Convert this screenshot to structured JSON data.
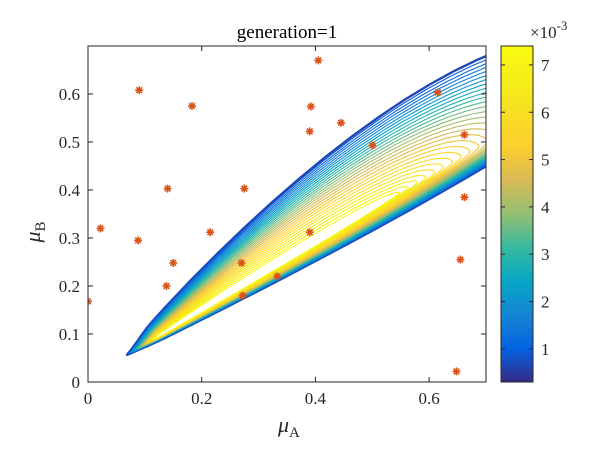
{
  "chart_data": {
    "type": "contour",
    "title": "generation=1",
    "xlabel": {
      "symbol": "μ",
      "sub": "A"
    },
    "ylabel": {
      "symbol": "μ",
      "sub": "B"
    },
    "xlim": [
      0,
      0.7
    ],
    "ylim": [
      0,
      0.7
    ],
    "xticks": [
      0,
      0.2,
      0.4,
      0.6
    ],
    "xtick_labels": [
      "0",
      "0.2",
      "0.4",
      "0.6"
    ],
    "yticks": [
      0,
      0.1,
      0.2,
      0.3,
      0.4,
      0.5,
      0.6
    ],
    "ytick_labels": [
      "0",
      "0.1",
      "0.2",
      "0.3",
      "0.4",
      "0.5",
      "0.6"
    ],
    "colorbar": {
      "min": 0.3,
      "max": 7.4,
      "ticks": [
        1,
        2,
        3,
        4,
        5,
        6,
        7
      ],
      "tick_labels": [
        "1",
        "2",
        "3",
        "4",
        "5",
        "6",
        "7"
      ],
      "multiplier_base": "×10",
      "multiplier_exp": "-3",
      "colormap": "parula"
    },
    "contour_peak": {
      "x": 0.57,
      "y": 0.41
    },
    "contour_levels": 28,
    "scatter": {
      "marker": "asterisk",
      "color": "#d95319",
      "points": [
        [
          0.0,
          0.168
        ],
        [
          0.022,
          0.32
        ],
        [
          0.088,
          0.295
        ],
        [
          0.09,
          0.608
        ],
        [
          0.138,
          0.2
        ],
        [
          0.14,
          0.403
        ],
        [
          0.15,
          0.248
        ],
        [
          0.183,
          0.575
        ],
        [
          0.215,
          0.312
        ],
        [
          0.27,
          0.248
        ],
        [
          0.272,
          0.18
        ],
        [
          0.275,
          0.403
        ],
        [
          0.333,
          0.22
        ],
        [
          0.39,
          0.312
        ],
        [
          0.39,
          0.522
        ],
        [
          0.392,
          0.574
        ],
        [
          0.405,
          0.67
        ],
        [
          0.445,
          0.54
        ],
        [
          0.5,
          0.493
        ],
        [
          0.615,
          0.603
        ],
        [
          0.648,
          0.022
        ],
        [
          0.655,
          0.255
        ],
        [
          0.662,
          0.385
        ],
        [
          0.662,
          0.515
        ]
      ]
    }
  }
}
